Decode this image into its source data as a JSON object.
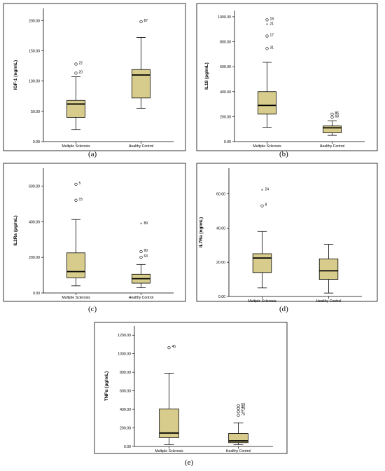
{
  "box_fill": "#d8cc8c",
  "panels": [
    {
      "label": "(a)",
      "chart_data": {
        "type": "boxplot",
        "ylabel": "IGF-1 (ng/mL)",
        "ylim": [
          0,
          220
        ],
        "yticks": [
          0,
          50,
          100,
          150,
          200
        ],
        "ytick_labels": [
          "0.00",
          "50.00",
          "100.00",
          "150.00",
          "200.00"
        ],
        "categories": [
          "Multiple Sclerosis",
          "Healthy Control"
        ],
        "boxes": [
          {
            "whisker_low": 20,
            "q1": 40,
            "median": 62,
            "q3": 68,
            "whisker_high": 107,
            "outliers": [
              {
                "value": 128,
                "label": "22",
                "marker": "circle"
              },
              {
                "value": 113,
                "label": "20",
                "marker": "circle"
              }
            ]
          },
          {
            "whisker_low": 55,
            "q1": 72,
            "median": 110,
            "q3": 119,
            "whisker_high": 172,
            "outliers": [
              {
                "value": 198,
                "label": "87",
                "marker": "circle"
              }
            ]
          }
        ]
      }
    },
    {
      "label": "(b)",
      "chart_data": {
        "type": "boxplot",
        "ylabel": "IL18 (pg/mL)",
        "ylim": [
          0,
          1050
        ],
        "yticks": [
          0,
          200,
          400,
          600,
          800,
          1000
        ],
        "ytick_labels": [
          "0.00",
          "200.00",
          "400.00",
          "600.00",
          "800.00",
          "1000.00"
        ],
        "categories": [
          "Multiple Sclerosis",
          "Healthy Control"
        ],
        "boxes": [
          {
            "whisker_low": 115,
            "q1": 220,
            "median": 290,
            "q3": 400,
            "whisker_high": 635,
            "outliers": [
              {
                "value": 975,
                "label": "18",
                "marker": "circle"
              },
              {
                "value": 935,
                "label": "21",
                "marker": "star"
              },
              {
                "value": 845,
                "label": "17",
                "marker": "circle"
              },
              {
                "value": 745,
                "label": "31",
                "marker": "circle"
              }
            ]
          },
          {
            "whisker_low": 50,
            "q1": 70,
            "median": 110,
            "q3": 125,
            "whisker_high": 165,
            "outliers": [
              {
                "value": 220,
                "label": "86",
                "marker": "circle"
              },
              {
                "value": 195,
                "label": "68",
                "marker": "circle"
              }
            ]
          }
        ]
      }
    },
    {
      "label": "(c)",
      "chart_data": {
        "type": "boxplot",
        "ylabel": "IL2Ra (pg/mL)",
        "ylim": [
          0,
          700
        ],
        "yticks": [
          0,
          200,
          400,
          600
        ],
        "ytick_labels": [
          "0.00",
          "200.00",
          "400.00",
          "600.00"
        ],
        "categories": [
          "Multiple Sclerosis",
          "Healthy Control"
        ],
        "boxes": [
          {
            "whisker_low": 40,
            "q1": 85,
            "median": 120,
            "q3": 225,
            "whisker_high": 412,
            "outliers": [
              {
                "value": 610,
                "label": "5",
                "marker": "circle"
              },
              {
                "value": 520,
                "label": "15",
                "marker": "circle"
              }
            ]
          },
          {
            "whisker_low": 30,
            "q1": 55,
            "median": 80,
            "q3": 105,
            "whisker_high": 160,
            "outliers": [
              {
                "value": 385,
                "label": "89",
                "marker": "star"
              },
              {
                "value": 232,
                "label": "90",
                "marker": "circle"
              },
              {
                "value": 200,
                "label": "63",
                "marker": "circle"
              }
            ]
          }
        ]
      }
    },
    {
      "label": "(d)",
      "chart_data": {
        "type": "boxplot",
        "ylabel": "IL7Ra (ng/mL)",
        "ylim": [
          0,
          75
        ],
        "yticks": [
          0,
          20,
          40,
          60
        ],
        "ytick_labels": [
          "0.00",
          "20.00",
          "40.00",
          "60.00"
        ],
        "categories": [
          "Multiple Sclerosis",
          "Healthy Control"
        ],
        "boxes": [
          {
            "whisker_low": 5,
            "q1": 14,
            "median": 22.5,
            "q3": 25,
            "whisker_high": 38,
            "outliers": [
              {
                "value": 62,
                "label": "24",
                "marker": "star"
              },
              {
                "value": 53,
                "label": "8",
                "marker": "circle"
              }
            ]
          },
          {
            "whisker_low": 2,
            "q1": 10,
            "median": 15,
            "q3": 22,
            "whisker_high": 30.5,
            "outliers": []
          }
        ]
      }
    },
    {
      "label": "(e)",
      "chart_data": {
        "type": "boxplot",
        "ylabel": "TNFα (pg/mL)",
        "ylim": [
          0,
          1300
        ],
        "yticks": [
          0,
          200,
          400,
          600,
          800,
          1000,
          1200
        ],
        "ytick_labels": [
          "0.00",
          "200.00",
          "400.00",
          "600.00",
          "800.00",
          "1000.00",
          "1200.00"
        ],
        "categories": [
          "Multiple Sclerosis",
          "Healthy Control"
        ],
        "boxes": [
          {
            "whisker_low": 20,
            "q1": 95,
            "median": 145,
            "q3": 405,
            "whisker_high": 790,
            "outliers": [
              {
                "value": 1065,
                "label": "45",
                "marker": "circle"
              }
            ]
          },
          {
            "whisker_low": 20,
            "q1": 40,
            "median": 60,
            "q3": 140,
            "whisker_high": 255,
            "outliers": [
              {
                "value": 440,
                "label": "59",
                "marker": "circle"
              },
              {
                "value": 410,
                "label": "46",
                "marker": "circle"
              },
              {
                "value": 375,
                "label": "57",
                "marker": "circle"
              },
              {
                "value": 335,
                "label": "76",
                "marker": "circle"
              }
            ]
          }
        ]
      }
    }
  ]
}
